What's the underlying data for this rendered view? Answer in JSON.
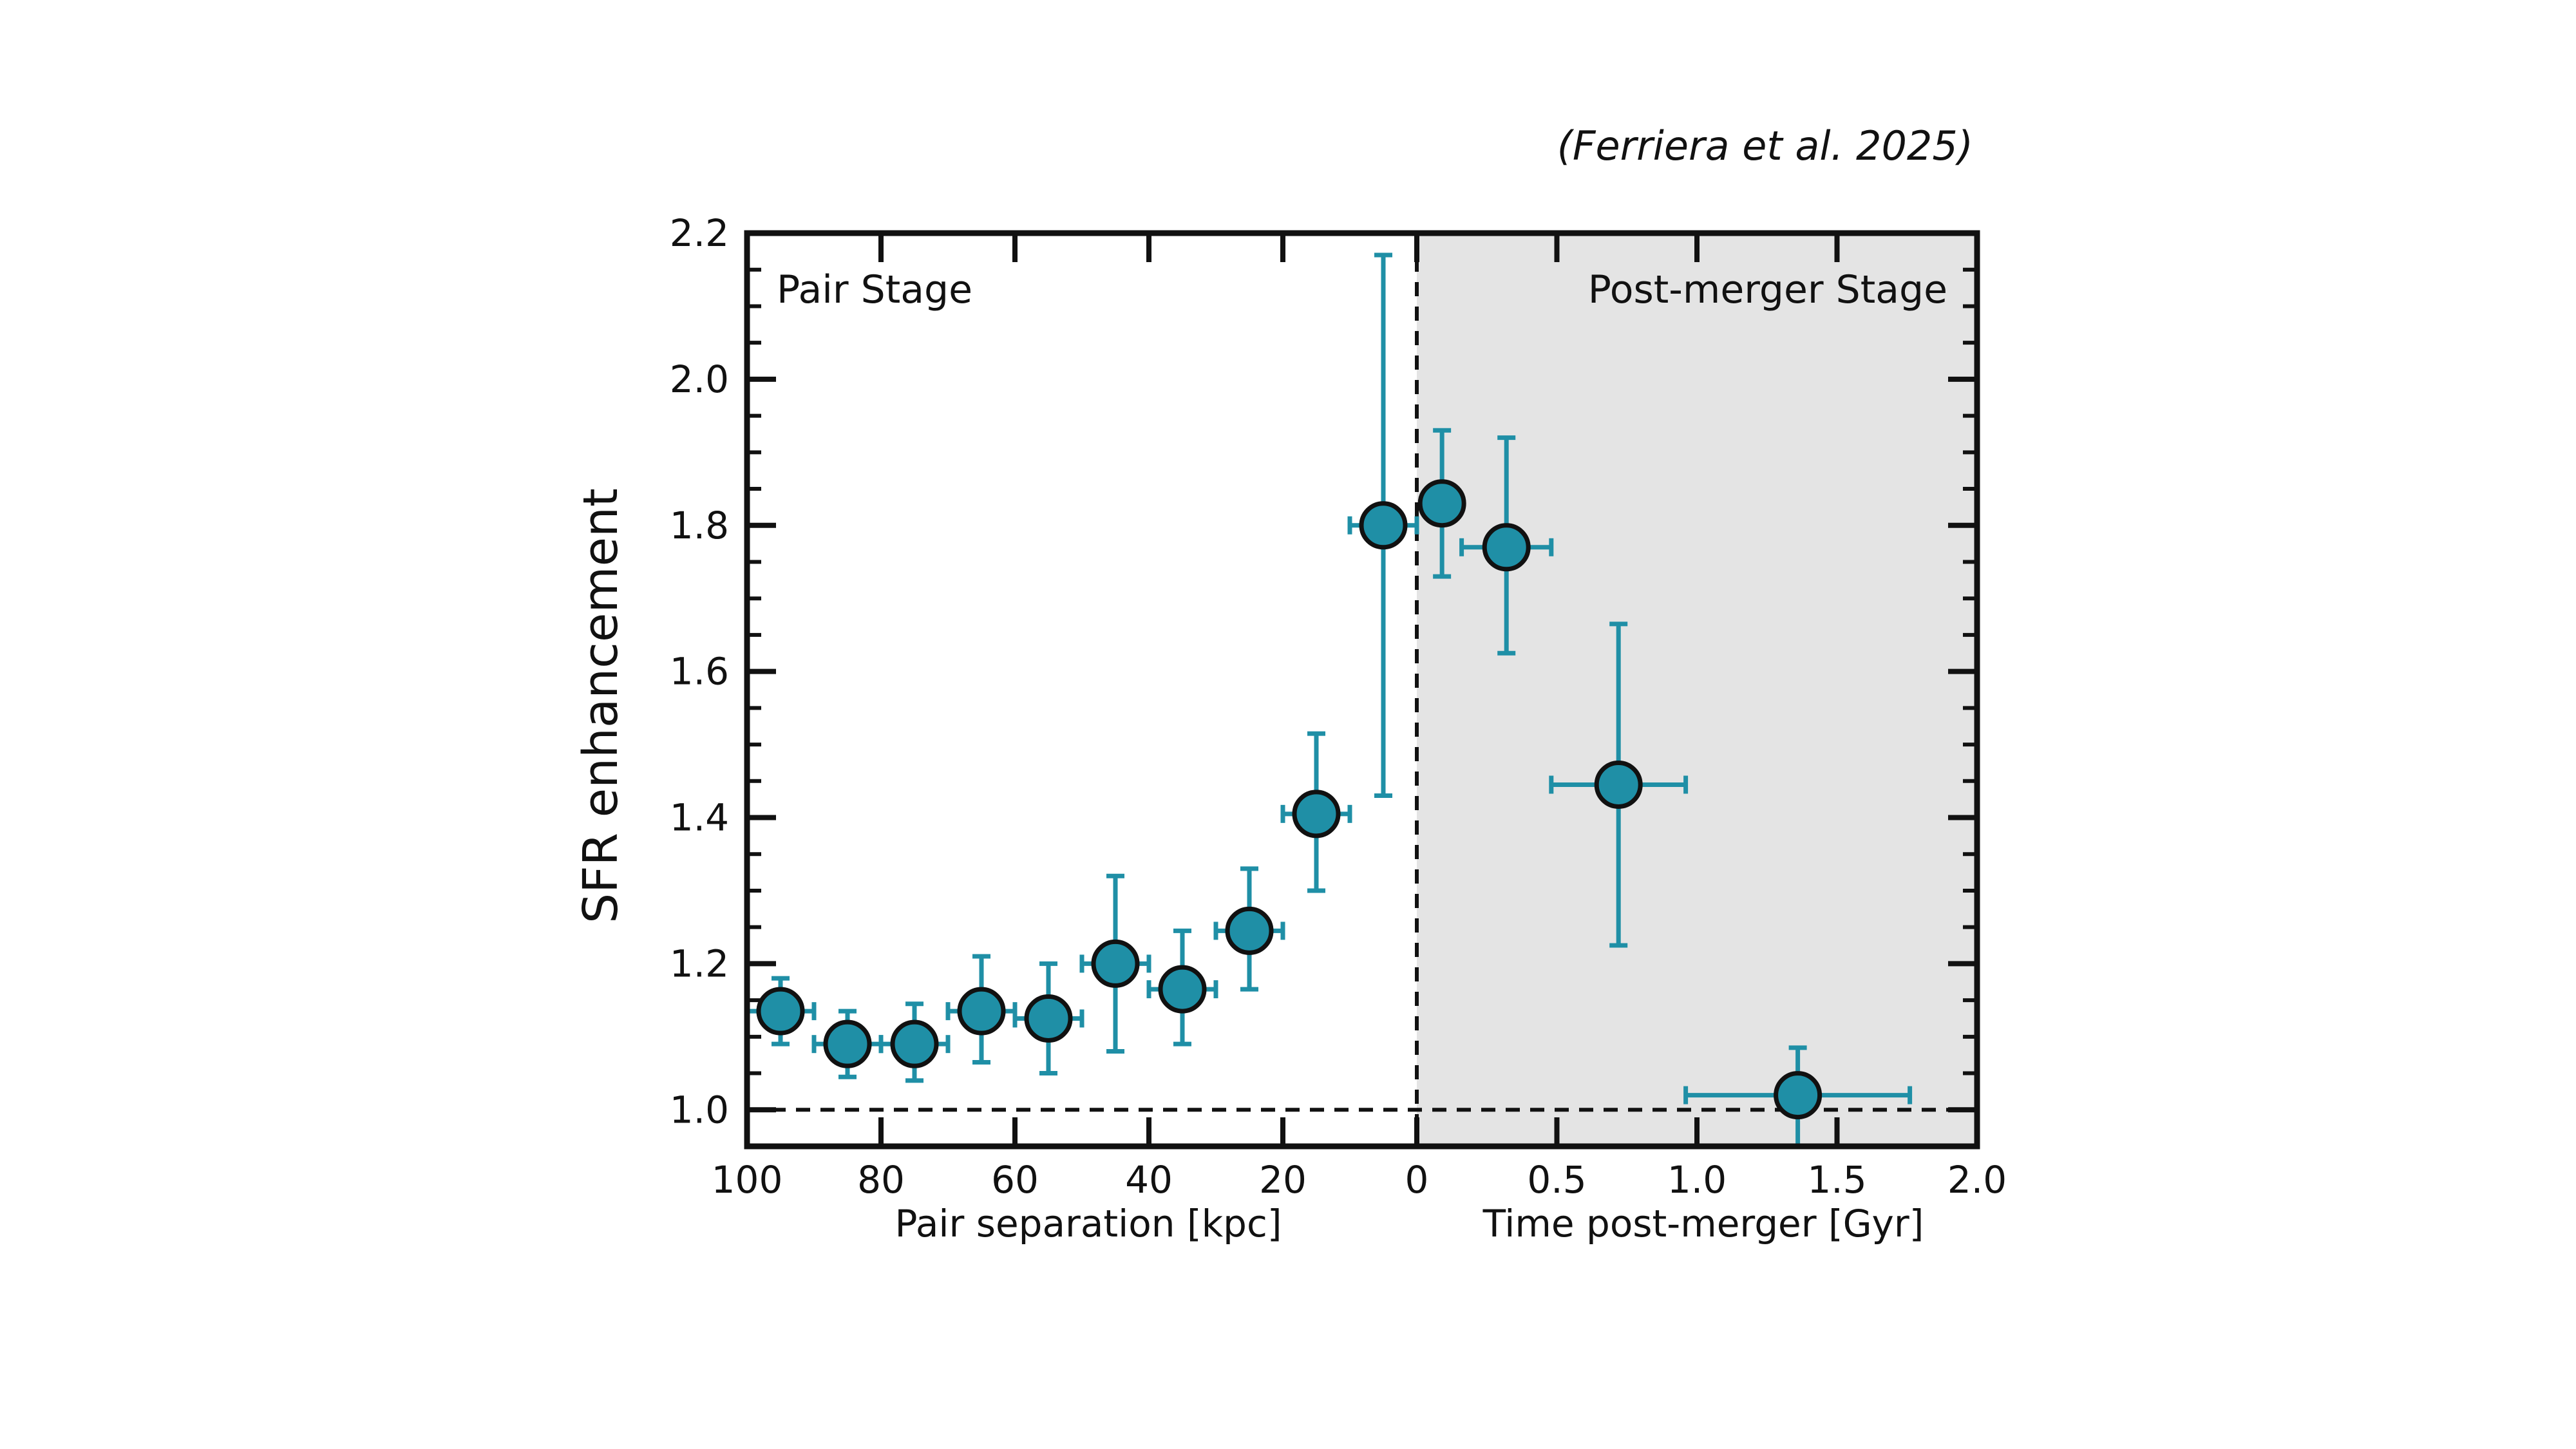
{
  "citation": "(Ferriera et al. 2025)",
  "chart_data": {
    "type": "scatter",
    "ylabel": "SFR enhancement",
    "ylim": [
      0.95,
      2.2
    ],
    "yticks": [
      "1.0",
      "1.2",
      "1.4",
      "1.6",
      "1.8",
      "2.0",
      "2.2"
    ],
    "reference_line_y": 1.0,
    "marker_color": "#1f8fa6",
    "shaded_color": "#e4e4e4",
    "panels": [
      {
        "stage_label": "Pair Stage",
        "xlabel": "Pair separation [kpc]",
        "xlim": [
          100,
          0
        ],
        "xticks": [
          "100",
          "80",
          "60",
          "40",
          "20",
          "0"
        ],
        "points": [
          {
            "x": 95,
            "y": 1.135,
            "xerr": 5,
            "ylow": 1.09,
            "yhigh": 1.18
          },
          {
            "x": 85,
            "y": 1.09,
            "xerr": 5,
            "ylow": 1.045,
            "yhigh": 1.135
          },
          {
            "x": 75,
            "y": 1.09,
            "xerr": 5,
            "ylow": 1.04,
            "yhigh": 1.145
          },
          {
            "x": 65,
            "y": 1.135,
            "xerr": 5,
            "ylow": 1.065,
            "yhigh": 1.21
          },
          {
            "x": 55,
            "y": 1.125,
            "xerr": 5,
            "ylow": 1.05,
            "yhigh": 1.2
          },
          {
            "x": 45,
            "y": 1.2,
            "xerr": 5,
            "ylow": 1.08,
            "yhigh": 1.32
          },
          {
            "x": 35,
            "y": 1.165,
            "xerr": 5,
            "ylow": 1.09,
            "yhigh": 1.245
          },
          {
            "x": 25,
            "y": 1.245,
            "xerr": 5,
            "ylow": 1.165,
            "yhigh": 1.33
          },
          {
            "x": 15,
            "y": 1.405,
            "xerr": 5,
            "ylow": 1.3,
            "yhigh": 1.515
          },
          {
            "x": 5,
            "y": 1.8,
            "xerr": 5,
            "ylow": 1.43,
            "yhigh": 2.17
          }
        ]
      },
      {
        "stage_label": "Post-merger Stage",
        "xlabel": "Time post-merger [Gyr]",
        "xlim": [
          0,
          2.0
        ],
        "xticks": [
          "0",
          "0.5",
          "1.0",
          "1.5",
          "2.0"
        ],
        "points": [
          {
            "x": 0.09,
            "y": 1.83,
            "xerr": 0.07,
            "ylow": 1.73,
            "yhigh": 1.93
          },
          {
            "x": 0.32,
            "y": 1.77,
            "xerr": 0.16,
            "ylow": 1.625,
            "yhigh": 1.92
          },
          {
            "x": 0.72,
            "y": 1.445,
            "xerr": 0.24,
            "ylow": 1.225,
            "yhigh": 1.665
          },
          {
            "x": 1.36,
            "y": 1.02,
            "xerr": 0.4,
            "ylow": 0.95,
            "yhigh": 1.085
          }
        ]
      }
    ]
  }
}
